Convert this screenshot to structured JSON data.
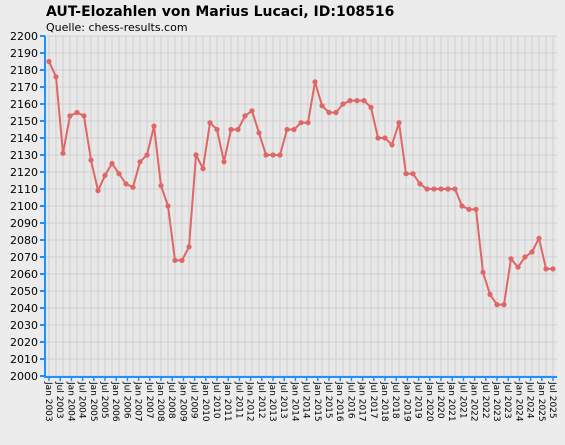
{
  "chart_data": {
    "type": "line",
    "title": "AUT-Elozahlen von Marius Lucaci, ID:108516",
    "subtitle": "Quelle: chess-results.com",
    "ylim": [
      2000,
      2200
    ],
    "yticks": [
      2000,
      2010,
      2020,
      2030,
      2040,
      2050,
      2060,
      2070,
      2080,
      2090,
      2100,
      2110,
      2120,
      2130,
      2140,
      2150,
      2160,
      2170,
      2180,
      2190,
      2200
    ],
    "grid": true,
    "xtick_labels": [
      "Jan 2003",
      "Jul 2003",
      "Jan 2004",
      "Jul 2004",
      "Jan 2005",
      "Jul 2005",
      "Jan 2006",
      "Jul 2006",
      "Jan 2007",
      "Jul 2007",
      "Jan 2008",
      "Jul 2008",
      "Jan 2009",
      "Jul 2009",
      "Jan 2010",
      "Jul 2010",
      "Jan 2011",
      "Jul 2011",
      "Jan 2012",
      "Jul 2012",
      "Jan 2013",
      "Jul 2013",
      "Jan 2014",
      "Jul 2014",
      "Jan 2015",
      "Jul 2015",
      "Jan 2016",
      "Jul 2016",
      "Jan 2017",
      "Jul 2017",
      "Jan 2018",
      "Jul 2018",
      "Jan 2019",
      "Jul 2019",
      "Jan 2020",
      "Jul 2020",
      "Jan 2021",
      "Jul 2021",
      "Jan 2022",
      "Jul 2022",
      "Jan 2023",
      "Jul 2023",
      "Jan 2024",
      "Jul 2024",
      "Jan 2025",
      "Jul 2025"
    ],
    "series": [
      {
        "name": "Elo",
        "color": "#e06666",
        "values": [
          2185,
          2176,
          2131,
          2153,
          2155,
          2153,
          2127,
          2109,
          2118,
          2125,
          2119,
          2113,
          2111,
          2126,
          2130,
          2147,
          2112,
          2100,
          2068,
          2068,
          2076,
          2130,
          2122,
          2149,
          2145,
          2126,
          2145,
          2145,
          2153,
          2156,
          2143,
          2130,
          2130,
          2130,
          2145,
          2145,
          2149,
          2149,
          2173,
          2159,
          2155,
          2155,
          2160,
          2162,
          2162,
          2162,
          2158,
          2140,
          2140,
          2136,
          2149,
          2119,
          2119,
          2113,
          2110,
          2110,
          2110,
          2110,
          2110,
          2100,
          2098,
          2098,
          2061,
          2048,
          2042,
          2042,
          2069,
          2064,
          2070,
          2073,
          2081,
          2063,
          2063
        ]
      }
    ]
  }
}
